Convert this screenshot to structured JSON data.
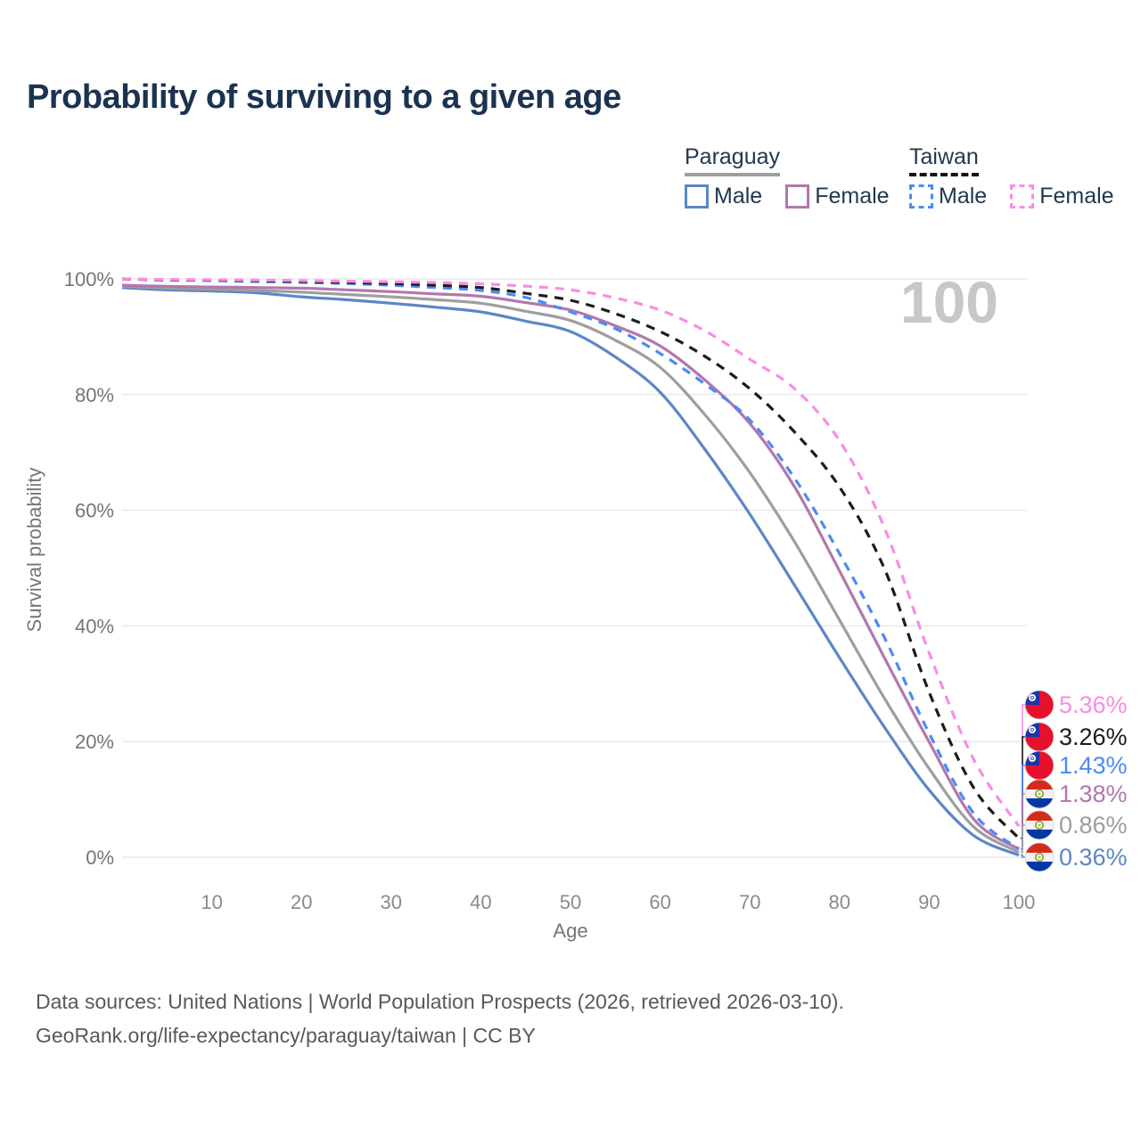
{
  "title": "Probability of surviving to a given age",
  "watermark_age": "100",
  "legend": {
    "groups": [
      {
        "label": "Paraguay",
        "underline_style": "solid",
        "underline_color": "#9e9e9e",
        "items": [
          {
            "label": "Male",
            "color": "#5b87c7",
            "dashed": false
          },
          {
            "label": "Female",
            "color": "#b277ad",
            "dashed": false
          }
        ]
      },
      {
        "label": "Taiwan",
        "underline_style": "dashed",
        "underline_color": "#141414",
        "items": [
          {
            "label": "Male",
            "color": "#4b8bf4",
            "dashed": true
          },
          {
            "label": "Female",
            "color": "#fa8ce4",
            "dashed": true
          }
        ]
      }
    ]
  },
  "chart_data": {
    "type": "line",
    "title": "Probability of surviving to a given age",
    "xlabel": "Age",
    "ylabel": "Survival probability",
    "xlim": [
      0,
      100
    ],
    "ylim": [
      0,
      100
    ],
    "x_ticks": [
      10,
      20,
      30,
      40,
      50,
      60,
      70,
      80,
      90,
      100
    ],
    "y_ticks": [
      {
        "value": 0,
        "label": "0%"
      },
      {
        "value": 20,
        "label": "20%"
      },
      {
        "value": 40,
        "label": "40%"
      },
      {
        "value": 60,
        "label": "60%"
      },
      {
        "value": 80,
        "label": "80%"
      },
      {
        "value": 100,
        "label": "100%"
      }
    ],
    "grid": "horizontal",
    "legend_position": "top-right",
    "x": [
      0,
      5,
      10,
      15,
      20,
      25,
      30,
      35,
      40,
      45,
      50,
      55,
      60,
      65,
      70,
      75,
      80,
      85,
      90,
      95,
      100
    ],
    "series": [
      {
        "name": "Taiwan Female",
        "country": "Taiwan",
        "sex": "Female",
        "color": "#fa8ce4",
        "dashed": true,
        "flag": "taiwan-flag-icon",
        "end_label": "5.36%",
        "end_value": 5.36,
        "values": [
          100,
          99.9,
          99.85,
          99.8,
          99.7,
          99.6,
          99.5,
          99.35,
          99.15,
          98.75,
          98.1,
          96.7,
          94.6,
          91.0,
          86.1,
          81.0,
          72.0,
          57.0,
          35.3,
          16.8,
          5.36
        ]
      },
      {
        "name": "Taiwan Both sexes",
        "country": "Taiwan",
        "sex": "Both",
        "color": "#1c1c1c",
        "dashed": true,
        "flag": "taiwan-flag-icon",
        "end_label": "3.26%",
        "end_value": 3.26,
        "values": [
          100,
          99.85,
          99.8,
          99.7,
          99.55,
          99.4,
          99.2,
          98.9,
          98.5,
          97.5,
          96.3,
          94.0,
          90.9,
          86.6,
          81.0,
          73.5,
          64.0,
          49.9,
          28.5,
          11.9,
          3.26
        ]
      },
      {
        "name": "Taiwan Male",
        "country": "Taiwan",
        "sex": "Male",
        "color": "#4b8bf4",
        "dashed": true,
        "flag": "taiwan-flag-icon",
        "end_label": "1.43%",
        "end_value": 1.43,
        "values": [
          100,
          99.8,
          99.7,
          99.55,
          99.4,
          99.2,
          98.9,
          98.5,
          98.0,
          96.8,
          94.3,
          91.4,
          87.1,
          81.8,
          75.6,
          65.5,
          52.5,
          38.0,
          21.4,
          7.5,
          1.43
        ]
      },
      {
        "name": "Paraguay Female",
        "country": "Paraguay",
        "sex": "Female",
        "color": "#b277ad",
        "dashed": false,
        "flag": "paraguay-flag-icon",
        "end_label": "1.38%",
        "end_value": 1.38,
        "values": [
          98.9,
          98.7,
          98.6,
          98.5,
          98.4,
          98.1,
          97.8,
          97.4,
          97.0,
          95.9,
          94.6,
          91.9,
          88.4,
          82.5,
          75.0,
          64.0,
          49.5,
          34.5,
          19.9,
          6.5,
          1.38
        ]
      },
      {
        "name": "Paraguay Both sexes",
        "country": "Paraguay",
        "sex": "Both",
        "color": "#9e9e9e",
        "dashed": false,
        "flag": "paraguay-flag-icon",
        "end_label": "0.86%",
        "end_value": 0.86,
        "values": [
          98.7,
          98.4,
          98.2,
          98.0,
          97.7,
          97.3,
          96.9,
          96.4,
          95.8,
          94.4,
          92.8,
          89.4,
          84.7,
          76.5,
          66.5,
          54.5,
          41.0,
          27.5,
          15.3,
          5.2,
          0.86
        ]
      },
      {
        "name": "Paraguay Male",
        "country": "Paraguay",
        "sex": "Male",
        "color": "#5b87c7",
        "dashed": false,
        "flag": "paraguay-flag-icon",
        "end_label": "0.36%",
        "end_value": 0.36,
        "values": [
          98.5,
          98.1,
          97.9,
          97.6,
          96.9,
          96.4,
          95.8,
          95.1,
          94.3,
          92.7,
          90.9,
          86.5,
          80.4,
          70.5,
          59.3,
          47.0,
          34.5,
          22.5,
          11.6,
          3.7,
          0.36
        ]
      }
    ]
  },
  "colors": {
    "title_text": "#1b3350",
    "axis_text": "#757575",
    "gridline": "#e8e8e8",
    "watermark": "#c7c7c7",
    "footer_text": "#595959",
    "flag_taiwan_red": "#e8112d",
    "flag_taiwan_blue": "#1a36a8",
    "flag_paraguay_red": "#d52b1e",
    "flag_paraguay_blue": "#0038a8"
  },
  "footer": {
    "line1": "Data sources: United Nations | World Population Prospects (2026, retrieved 2026-03-10).",
    "line2": "GeoRank.org/life-expectancy/paraguay/taiwan | CC BY"
  }
}
